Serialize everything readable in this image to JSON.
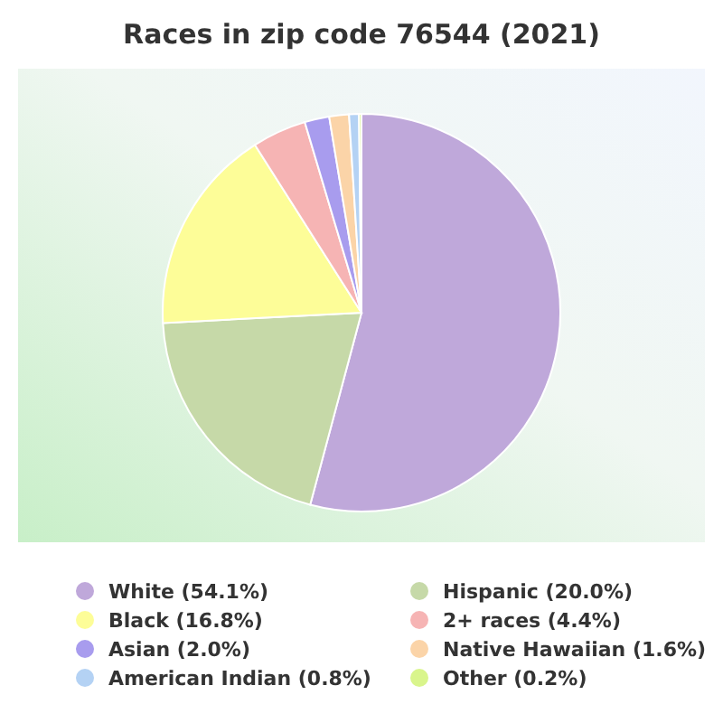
{
  "chart_data": {
    "type": "pie",
    "title": "Races in zip code 76544 (2021)",
    "categories": [
      "White (54.1%)",
      "Hispanic (20.0%)",
      "Black (16.8%)",
      "2+ races (4.4%)",
      "Asian (2.0%)",
      "Native Hawaiian (1.6%)",
      "American Indian (0.8%)",
      "Other (0.2%)"
    ],
    "values": [
      54.1,
      20.0,
      16.8,
      4.4,
      2.0,
      1.6,
      0.8,
      0.2
    ],
    "colors": [
      "#bfa8da",
      "#c6d9a8",
      "#fdfd98",
      "#f6b4b4",
      "#a89cee",
      "#fbd4a8",
      "#b4d2f4",
      "#d9f58c"
    ],
    "legend": "bottom"
  }
}
